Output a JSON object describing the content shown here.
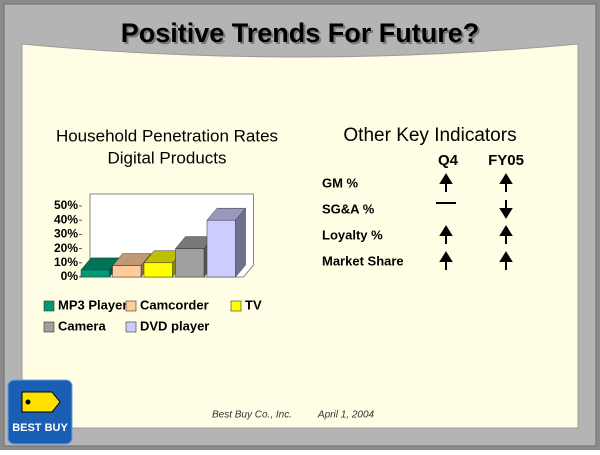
{
  "slide_title": "Positive Trends For Future?",
  "chart_data": {
    "type": "bar3d",
    "title": [
      "Household Penetration Rates",
      "Digital Products"
    ],
    "series": [
      {
        "name": "MP3 Player",
        "color": "#009977",
        "values": [
          5
        ]
      },
      {
        "name": "Camcorder",
        "color": "#ffcc99",
        "values": [
          8
        ]
      },
      {
        "name": "TV",
        "color": "#ffff00",
        "values": [
          10
        ]
      },
      {
        "name": "Camera",
        "color": "#a0a0a0",
        "values": [
          20
        ]
      },
      {
        "name": "DVD player",
        "color": "#ccccff",
        "values": [
          40
        ]
      }
    ],
    "ylim": [
      0,
      50
    ],
    "yticks": [
      {
        "value": 0,
        "label": "0%"
      },
      {
        "value": 10,
        "label": "10%"
      },
      {
        "value": 20,
        "label": "20%"
      },
      {
        "value": 30,
        "label": "30%"
      },
      {
        "value": 40,
        "label": "40%"
      },
      {
        "value": 50,
        "label": "50%"
      }
    ]
  },
  "indicators": {
    "title": "Other Key Indicators",
    "columns": [
      "Q4",
      "FY05"
    ],
    "rows": [
      "GM %",
      "SG&A %",
      "Loyalty %",
      "Market Share"
    ]
  },
  "logo": "BEST BUY",
  "footer": {
    "company": "Best Buy Co., Inc.",
    "date": "April 1, 2004"
  }
}
